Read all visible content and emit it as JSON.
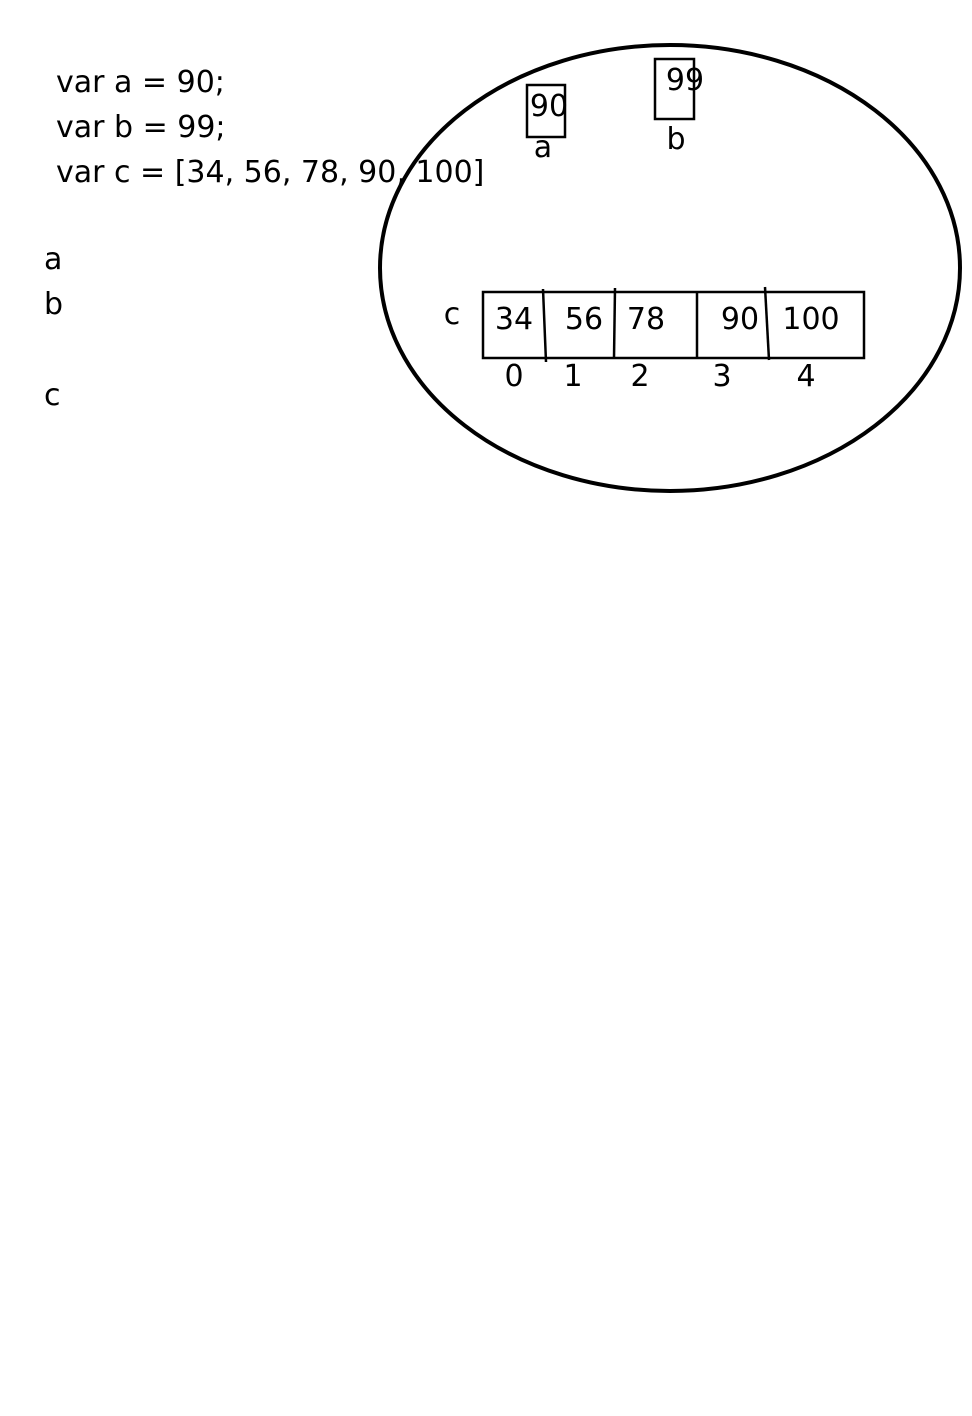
{
  "code": {
    "line_a": "var a = 90;",
    "line_b": "var b = 99;",
    "line_c": "var c = [34, 56, 78, 90, 100]"
  },
  "side_labels": {
    "a": "a",
    "b": "b",
    "c": "c"
  },
  "memory": {
    "var_a": {
      "value": "90",
      "name": "a"
    },
    "var_b": {
      "value": "99",
      "name": "b"
    },
    "array_c": {
      "name": "c",
      "values": [
        "34",
        "56",
        "78",
        "90",
        "100"
      ],
      "indices": [
        "0",
        "1",
        "2",
        "3",
        "4"
      ]
    }
  }
}
